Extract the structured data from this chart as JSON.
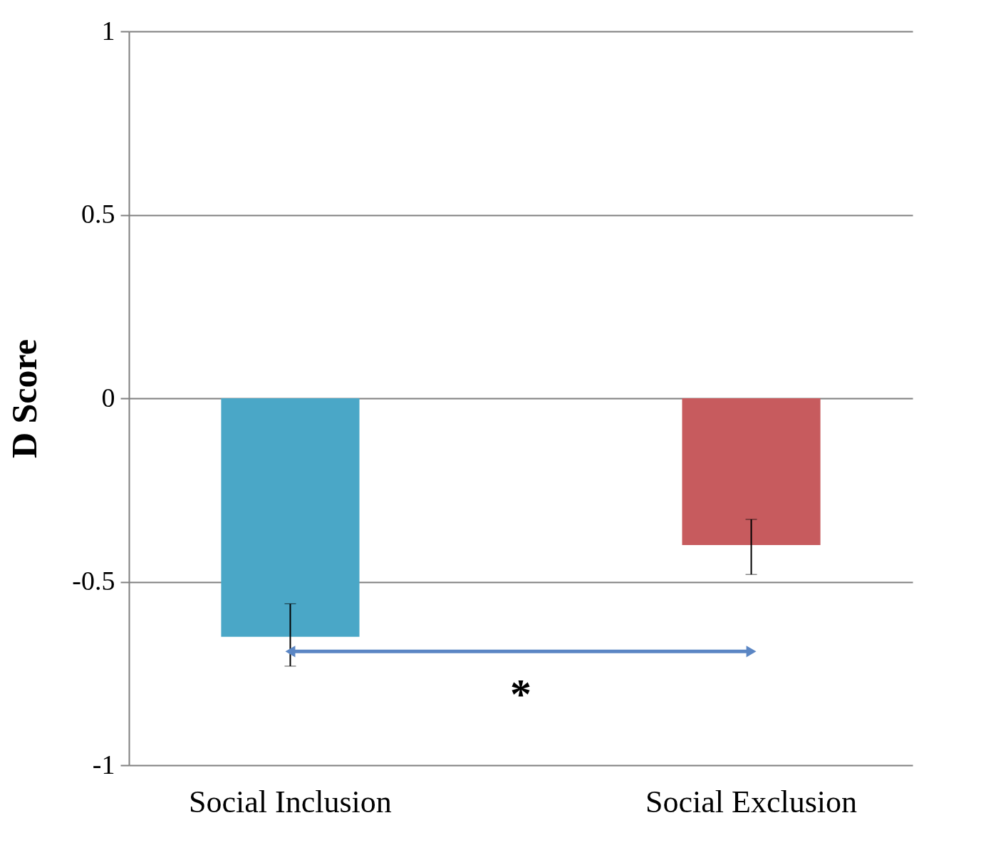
{
  "chart_data": {
    "type": "bar",
    "ylabel": "D Score",
    "categories": [
      "Social Inclusion",
      "Social Exclusion"
    ],
    "values": [
      -0.65,
      -0.4
    ],
    "colors": [
      "#4aa7c7",
      "#c75b5e"
    ],
    "errors": [
      [
        -0.73,
        -0.56
      ],
      [
        -0.48,
        -0.33
      ]
    ],
    "ylim": [
      -1,
      1
    ],
    "yticks": [
      -1,
      -0.5,
      0,
      0.5,
      1
    ],
    "grid": "y",
    "annotations": [
      "*"
    ]
  }
}
